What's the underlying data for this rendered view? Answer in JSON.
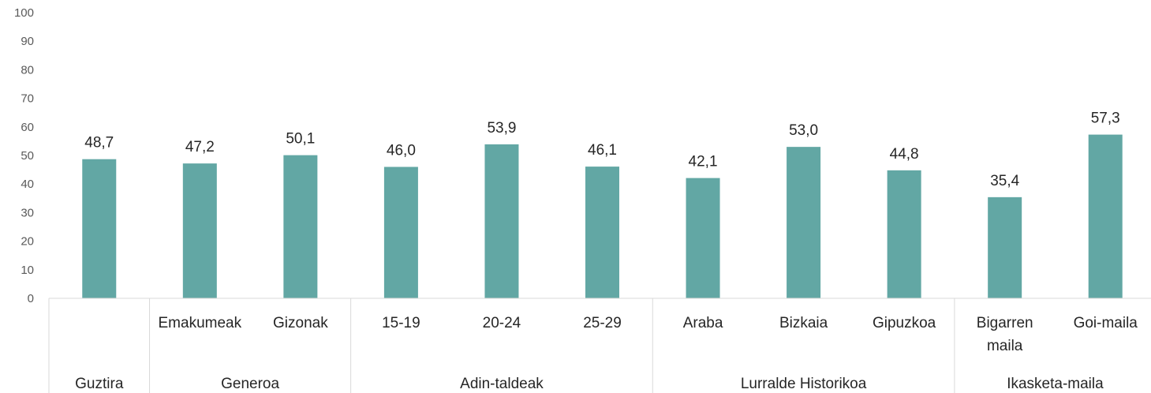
{
  "chart_data": {
    "type": "bar",
    "title": "",
    "xlabel": "",
    "ylabel": "",
    "ylim": [
      0,
      100
    ],
    "yticks": [
      0,
      10,
      20,
      30,
      40,
      50,
      60,
      70,
      80,
      90,
      100
    ],
    "grid": false,
    "bar_color": "#62a7a4",
    "categories": [
      {
        "label": "",
        "group": "Guztira",
        "value": 48.7,
        "value_label": "48,7"
      },
      {
        "label": "Emakumeak",
        "group": "Generoa",
        "value": 47.2,
        "value_label": "47,2"
      },
      {
        "label": "Gizonak",
        "group": "Generoa",
        "value": 50.1,
        "value_label": "50,1"
      },
      {
        "label": "15-19",
        "group": "Adin-taldeak",
        "value": 46.0,
        "value_label": "46,0"
      },
      {
        "label": "20-24",
        "group": "Adin-taldeak",
        "value": 53.9,
        "value_label": "53,9"
      },
      {
        "label": "25-29",
        "group": "Adin-taldeak",
        "value": 46.1,
        "value_label": "46,1"
      },
      {
        "label": "Araba",
        "group": "Lurralde Historikoa",
        "value": 42.1,
        "value_label": "42,1"
      },
      {
        "label": "Bizkaia",
        "group": "Lurralde Historikoa",
        "value": 53.0,
        "value_label": "53,0"
      },
      {
        "label": "Gipuzkoa",
        "group": "Lurralde Historikoa",
        "value": 44.8,
        "value_label": "44,8"
      },
      {
        "label": "Bigarren maila",
        "group": "Ikasketa-maila",
        "value": 35.4,
        "value_label": "35,4"
      },
      {
        "label": "Goi-maila",
        "group": "Ikasketa-maila",
        "value": 57.3,
        "value_label": "57,3"
      }
    ],
    "groups": [
      "Guztira",
      "Generoa",
      "Adin-taldeak",
      "Lurralde Historikoa",
      "Ikasketa-maila"
    ]
  }
}
